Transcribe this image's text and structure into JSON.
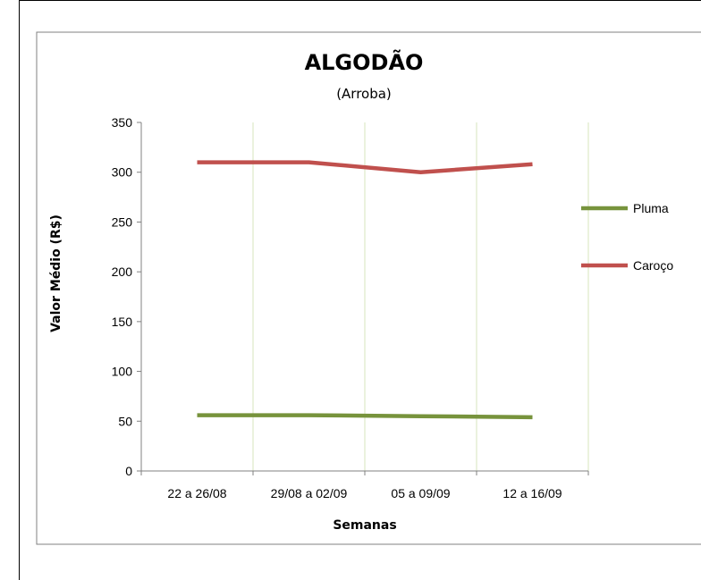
{
  "chart_data": {
    "type": "line",
    "title": "ALGODÃO",
    "subtitle": "(Arroba)",
    "xlabel": "Semanas",
    "ylabel": "Valor Médio (R$)",
    "categories": [
      "22 a 26/08",
      "29/08 a 02/09",
      "05 a 09/09",
      "12 a 16/09"
    ],
    "ylim": [
      0,
      350
    ],
    "yticks": [
      0,
      50,
      100,
      150,
      200,
      250,
      300,
      350
    ],
    "grid": "vertical",
    "legend_position": "right",
    "series": [
      {
        "name": "Pluma",
        "color": "#77933c",
        "values": [
          56,
          56,
          55,
          54
        ]
      },
      {
        "name": "Caroço",
        "color": "#c0504d",
        "values": [
          310,
          310,
          300,
          308
        ]
      }
    ]
  },
  "colors": {
    "grid": "#d7e4bd",
    "axis": "#808080",
    "frame": "#808080"
  }
}
